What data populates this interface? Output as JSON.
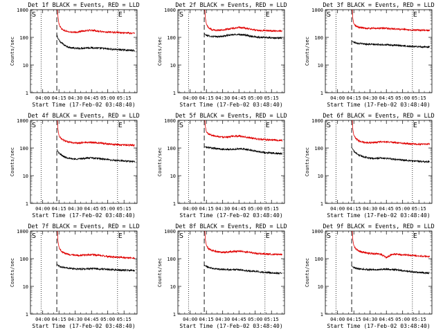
{
  "chart_data": [
    {
      "type": "line",
      "title": "Det 1f BLACK = Events, RED = LLD",
      "xlabel": "Start Time (17-Feb-02 03:48:40)",
      "ylabel": "Counts/sec",
      "y_scale": "log",
      "ylim": [
        1,
        1000
      ],
      "y_ticks": [
        1,
        10,
        100,
        1000
      ],
      "x_tick_labels": [
        "04:00",
        "04:15",
        "04:30",
        "04:45",
        "05:00",
        "05:15"
      ],
      "x_tick_minutes": [
        0,
        15,
        30,
        45,
        60,
        75
      ],
      "xlim_minutes": [
        -11.3,
        87
      ],
      "marker_S": "S",
      "marker_E": "E",
      "dotted_lines_minutes": [
        -1.5,
        69
      ],
      "dashed_line_minutes": [
        13
      ],
      "series": [
        {
          "color": "#000000",
          "x_minutes": [
            13,
            14,
            16,
            20,
            25,
            30,
            35,
            40,
            45,
            50,
            55,
            60,
            65,
            70,
            75,
            80,
            85
          ],
          "values": [
            130,
            90,
            70,
            52,
            43,
            40,
            40,
            42,
            42,
            41,
            40,
            38,
            37,
            36,
            35,
            34,
            33
          ]
        },
        {
          "color": "#e00000",
          "x_minutes": [
            13.5,
            14,
            15,
            17,
            20,
            25,
            30,
            35,
            40,
            45,
            50,
            55,
            60,
            65,
            70,
            75,
            80,
            85
          ],
          "values": [
            1200,
            600,
            300,
            210,
            175,
            155,
            150,
            165,
            175,
            180,
            170,
            160,
            155,
            150,
            150,
            145,
            142,
            140
          ]
        }
      ]
    },
    {
      "type": "line",
      "title": "Det 2f BLACK = Events, RED = LLD",
      "xlabel": "Start Time (17-Feb-02 03:48:40)",
      "ylabel": "Counts/sec",
      "y_scale": "log",
      "ylim": [
        1,
        1000
      ],
      "y_ticks": [
        1,
        10,
        100,
        1000
      ],
      "x_tick_labels": [
        "04:00",
        "04:15",
        "04:30",
        "04:45",
        "05:00",
        "05:15"
      ],
      "x_tick_minutes": [
        0,
        15,
        30,
        45,
        60,
        75
      ],
      "xlim_minutes": [
        -11.3,
        87
      ],
      "marker_S": "S",
      "marker_E": "E",
      "dotted_lines_minutes": [
        -1.5,
        69
      ],
      "dashed_line_minutes": [
        13
      ],
      "series": [
        {
          "color": "#000000",
          "x_minutes": [
            13,
            14,
            16,
            20,
            25,
            30,
            35,
            40,
            45,
            50,
            55,
            60,
            65,
            70,
            75,
            80,
            85
          ],
          "values": [
            140,
            125,
            115,
            108,
            105,
            110,
            118,
            125,
            128,
            122,
            112,
            105,
            100,
            98,
            96,
            95,
            95
          ]
        },
        {
          "color": "#e00000",
          "x_minutes": [
            13.5,
            14,
            15,
            17,
            20,
            25,
            30,
            35,
            40,
            45,
            50,
            55,
            60,
            65,
            70,
            75,
            80,
            85
          ],
          "values": [
            1200,
            500,
            300,
            220,
            190,
            180,
            185,
            200,
            215,
            225,
            215,
            200,
            185,
            178,
            175,
            172,
            170,
            168
          ]
        }
      ]
    },
    {
      "type": "line",
      "title": "Det 3f BLACK = Events, RED = LLD",
      "xlabel": "Start Time (17-Feb-02 03:48:40)",
      "ylabel": "Counts/sec",
      "y_scale": "log",
      "ylim": [
        1,
        1000
      ],
      "y_ticks": [
        1,
        10,
        100,
        1000
      ],
      "x_tick_labels": [
        "04:00",
        "04:15",
        "04:30",
        "04:45",
        "05:00",
        "05:15"
      ],
      "x_tick_minutes": [
        0,
        15,
        30,
        45,
        60,
        75
      ],
      "xlim_minutes": [
        -11.3,
        87
      ],
      "marker_S": "S",
      "marker_E": "E",
      "dotted_lines_minutes": [
        -1.5,
        69
      ],
      "dashed_line_minutes": [
        13
      ],
      "series": [
        {
          "color": "#000000",
          "x_minutes": [
            13,
            14,
            16,
            20,
            25,
            30,
            35,
            40,
            45,
            50,
            55,
            60,
            65,
            70,
            75,
            80,
            85
          ],
          "values": [
            75,
            70,
            65,
            60,
            58,
            56,
            55,
            55,
            54,
            52,
            51,
            50,
            48,
            47,
            46,
            45,
            45
          ]
        },
        {
          "color": "#e00000",
          "x_minutes": [
            13.5,
            14,
            15,
            17,
            20,
            25,
            30,
            35,
            40,
            45,
            50,
            55,
            60,
            65,
            70,
            75,
            80,
            85
          ],
          "values": [
            1200,
            500,
            300,
            250,
            230,
            215,
            210,
            212,
            215,
            212,
            205,
            198,
            192,
            188,
            185,
            182,
            180,
            178
          ]
        }
      ]
    },
    {
      "type": "line",
      "title": "Det 4f BLACK = Events, RED = LLD",
      "xlabel": "Start Time (17-Feb-02 03:48:40)",
      "ylabel": "Counts/sec",
      "y_scale": "log",
      "ylim": [
        1,
        1000
      ],
      "y_ticks": [
        1,
        10,
        100,
        1000
      ],
      "x_tick_labels": [
        "04:00",
        "04:15",
        "04:30",
        "04:45",
        "05:00",
        "05:15"
      ],
      "x_tick_minutes": [
        0,
        15,
        30,
        45,
        60,
        75
      ],
      "xlim_minutes": [
        -11.3,
        87
      ],
      "marker_S": "S",
      "marker_E": "E",
      "dotted_lines_minutes": [
        -1.5,
        69
      ],
      "dashed_line_minutes": [
        13
      ],
      "series": [
        {
          "color": "#000000",
          "x_minutes": [
            13,
            14,
            16,
            20,
            25,
            30,
            35,
            40,
            45,
            50,
            55,
            60,
            65,
            70,
            75,
            80,
            85
          ],
          "values": [
            90,
            75,
            60,
            48,
            42,
            40,
            41,
            43,
            44,
            42,
            40,
            38,
            36,
            35,
            34,
            33,
            32
          ]
        },
        {
          "color": "#e00000",
          "x_minutes": [
            13.5,
            14,
            15,
            17,
            20,
            25,
            30,
            35,
            40,
            45,
            50,
            55,
            60,
            65,
            70,
            75,
            80,
            85
          ],
          "values": [
            1200,
            500,
            280,
            220,
            185,
            160,
            150,
            155,
            160,
            162,
            155,
            148,
            140,
            135,
            132,
            130,
            128,
            125
          ]
        }
      ]
    },
    {
      "type": "line",
      "title": "Det 5f BLACK = Events, RED = LLD",
      "xlabel": "Start Time (17-Feb-02 03:48:40)",
      "ylabel": "Counts/sec",
      "y_scale": "log",
      "ylim": [
        1,
        1000
      ],
      "y_ticks": [
        1,
        10,
        100,
        1000
      ],
      "x_tick_labels": [
        "04:00",
        "04:15",
        "04:30",
        "04:45",
        "05:00",
        "05:15"
      ],
      "x_tick_minutes": [
        0,
        15,
        30,
        45,
        60,
        75
      ],
      "xlim_minutes": [
        -11.3,
        87
      ],
      "marker_S": "S",
      "marker_E": "E",
      "dotted_lines_minutes": [
        -1.5,
        69
      ],
      "dashed_line_minutes": [
        13
      ],
      "series": [
        {
          "color": "#000000",
          "x_minutes": [
            13,
            14,
            16,
            20,
            25,
            30,
            35,
            40,
            45,
            50,
            55,
            60,
            65,
            70,
            75,
            80,
            85
          ],
          "values": [
            115,
            110,
            105,
            100,
            95,
            90,
            88,
            90,
            93,
            92,
            85,
            78,
            72,
            68,
            66,
            64,
            62
          ]
        },
        {
          "color": "#e00000",
          "x_minutes": [
            13.5,
            14,
            15,
            17,
            20,
            25,
            30,
            35,
            40,
            45,
            50,
            55,
            60,
            65,
            70,
            75,
            80,
            85
          ],
          "values": [
            1200,
            600,
            380,
            320,
            290,
            265,
            250,
            255,
            265,
            270,
            255,
            235,
            215,
            205,
            200,
            195,
            192,
            190
          ]
        }
      ]
    },
    {
      "type": "line",
      "title": "Det 6f BLACK = Events, RED = LLD",
      "xlabel": "Start Time (17-Feb-02 03:48:40)",
      "ylabel": "Counts/sec",
      "y_scale": "log",
      "ylim": [
        1,
        1000
      ],
      "y_ticks": [
        1,
        10,
        100,
        1000
      ],
      "x_tick_labels": [
        "04:00",
        "04:15",
        "04:30",
        "04:45",
        "05:00",
        "05:15"
      ],
      "x_tick_minutes": [
        0,
        15,
        30,
        45,
        60,
        75
      ],
      "xlim_minutes": [
        -11.3,
        87
      ],
      "marker_S": "S",
      "marker_E": "E",
      "dotted_lines_minutes": [
        -1.5,
        69
      ],
      "dashed_line_minutes": [
        13
      ],
      "series": [
        {
          "color": "#000000",
          "x_minutes": [
            13,
            14,
            16,
            20,
            25,
            30,
            35,
            40,
            45,
            50,
            55,
            60,
            65,
            70,
            75,
            80,
            85
          ],
          "values": [
            105,
            90,
            70,
            55,
            47,
            43,
            42,
            43,
            42,
            40,
            38,
            37,
            35,
            34,
            33,
            32,
            32
          ]
        },
        {
          "color": "#e00000",
          "x_minutes": [
            13.5,
            14,
            15,
            17,
            20,
            25,
            30,
            35,
            40,
            45,
            50,
            55,
            60,
            65,
            70,
            75,
            80,
            85
          ],
          "values": [
            1200,
            500,
            280,
            215,
            180,
            160,
            155,
            162,
            168,
            170,
            162,
            155,
            148,
            143,
            140,
            138,
            138,
            140
          ]
        }
      ]
    },
    {
      "type": "line",
      "title": "Det 7f BLACK = Events, RED = LLD",
      "xlabel": "Start Time (17-Feb-02 03:48:40)",
      "ylabel": "Counts/sec",
      "y_scale": "log",
      "ylim": [
        1,
        1000
      ],
      "y_ticks": [
        1,
        10,
        100,
        1000
      ],
      "x_tick_labels": [
        "04:00",
        "04:15",
        "04:30",
        "04:45",
        "05:00",
        "05:15"
      ],
      "x_tick_minutes": [
        0,
        15,
        30,
        45,
        60,
        75
      ],
      "xlim_minutes": [
        -11.3,
        87
      ],
      "marker_S": "S",
      "marker_E": "E",
      "dotted_lines_minutes": [
        -1.5,
        69
      ],
      "dashed_line_minutes": [
        13
      ],
      "series": [
        {
          "color": "#000000",
          "x_minutes": [
            13,
            14,
            16,
            20,
            25,
            30,
            35,
            40,
            45,
            50,
            55,
            60,
            65,
            70,
            75,
            80,
            85
          ],
          "values": [
            65,
            58,
            52,
            48,
            45,
            43,
            42,
            43,
            44,
            43,
            42,
            41,
            40,
            39,
            38,
            38,
            37
          ]
        },
        {
          "color": "#e00000",
          "x_minutes": [
            13.5,
            14,
            15,
            17,
            20,
            25,
            30,
            35,
            40,
            45,
            50,
            55,
            60,
            65,
            70,
            75,
            80,
            85
          ],
          "values": [
            1200,
            450,
            260,
            190,
            160,
            140,
            130,
            132,
            138,
            140,
            135,
            128,
            120,
            115,
            112,
            110,
            108,
            106
          ]
        }
      ]
    },
    {
      "type": "line",
      "title": "Det 8f BLACK = Events, RED = LLD",
      "xlabel": "Start Time (17-Feb-02 03:48:40)",
      "ylabel": "Counts/sec",
      "y_scale": "log",
      "ylim": [
        1,
        1000
      ],
      "y_ticks": [
        1,
        10,
        100,
        1000
      ],
      "x_tick_labels": [
        "04:00",
        "04:15",
        "04:30",
        "04:45",
        "05:00",
        "05:15"
      ],
      "x_tick_minutes": [
        0,
        15,
        30,
        45,
        60,
        75
      ],
      "xlim_minutes": [
        -11.3,
        87
      ],
      "marker_S": "S",
      "marker_E": "E",
      "dotted_lines_minutes": [
        -1.5,
        69
      ],
      "dashed_line_minutes": [
        13
      ],
      "series": [
        {
          "color": "#000000",
          "x_minutes": [
            13,
            14,
            16,
            20,
            25,
            30,
            35,
            40,
            45,
            50,
            55,
            60,
            65,
            70,
            75,
            80,
            85
          ],
          "values": [
            60,
            55,
            50,
            46,
            43,
            41,
            40,
            40,
            40,
            38,
            36,
            35,
            33,
            32,
            31,
            30,
            30
          ]
        },
        {
          "color": "#e00000",
          "x_minutes": [
            13.5,
            14,
            15,
            17,
            20,
            25,
            30,
            35,
            40,
            45,
            50,
            55,
            60,
            65,
            70,
            75,
            80,
            85
          ],
          "values": [
            1200,
            500,
            300,
            230,
            200,
            180,
            170,
            175,
            182,
            185,
            178,
            168,
            158,
            152,
            148,
            145,
            142,
            140
          ]
        }
      ]
    },
    {
      "type": "line",
      "title": "Det 9f BLACK = Events, RED = LLD",
      "xlabel": "Start Time (17-Feb-02 03:48:40)",
      "ylabel": "Counts/sec",
      "y_scale": "log",
      "ylim": [
        1,
        1000
      ],
      "y_ticks": [
        1,
        10,
        100,
        1000
      ],
      "x_tick_labels": [
        "04:00",
        "04:15",
        "04:30",
        "04:45",
        "05:00",
        "05:15"
      ],
      "x_tick_minutes": [
        0,
        15,
        30,
        45,
        60,
        75
      ],
      "xlim_minutes": [
        -11.3,
        87
      ],
      "marker_S": "S",
      "marker_E": "E",
      "dotted_lines_minutes": [
        -1.5,
        69
      ],
      "dashed_line_minutes": [
        13
      ],
      "series": [
        {
          "color": "#000000",
          "x_minutes": [
            13,
            14,
            16,
            20,
            25,
            30,
            35,
            40,
            45,
            50,
            55,
            60,
            65,
            70,
            75,
            80,
            85
          ],
          "values": [
            55,
            50,
            46,
            43,
            41,
            40,
            40,
            41,
            42,
            41,
            39,
            37,
            35,
            33,
            32,
            31,
            30
          ]
        },
        {
          "color": "#e00000",
          "x_minutes": [
            13.5,
            14,
            15,
            17,
            20,
            25,
            30,
            35,
            40,
            45,
            50,
            55,
            60,
            65,
            70,
            75,
            80,
            85
          ],
          "values": [
            1200,
            500,
            290,
            220,
            185,
            165,
            155,
            150,
            145,
            110,
            140,
            145,
            140,
            135,
            130,
            125,
            122,
            120
          ]
        }
      ]
    }
  ]
}
